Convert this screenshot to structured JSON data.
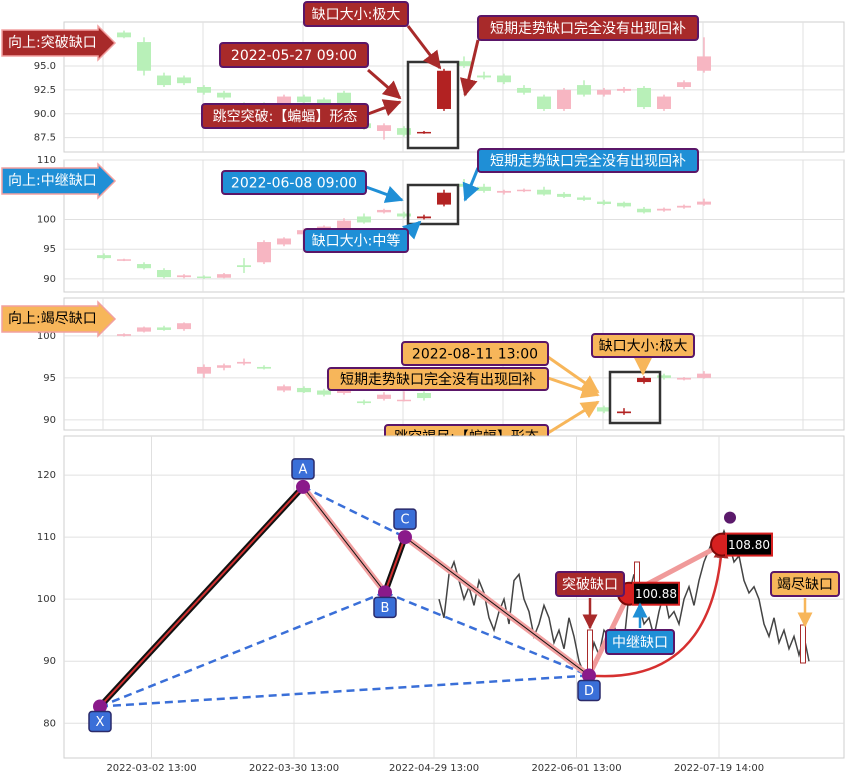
{
  "chart_data": [
    {
      "type": "candlestick",
      "banner": "向上:突破缺口",
      "theme_color": "#a82a2a",
      "text_color": "#ffffff",
      "border_color": "#5a1668",
      "up_color": "#f7b6c2",
      "down_color": "#b8f0b8",
      "highlight_color": "#b22222",
      "highlight_x": [
        18,
        19
      ],
      "xlim": [
        0,
        39
      ],
      "ylim": [
        86,
        99.6
      ],
      "yticks": [
        87.5,
        {
          "value": 90,
          "label": "90.0"
        },
        92.5,
        {
          "value": 95,
          "label": "95.0"
        }
      ],
      "x": [
        3,
        4,
        5,
        6,
        7,
        8,
        9,
        10,
        11,
        12,
        13,
        14,
        15,
        16,
        17,
        18,
        19,
        20,
        21,
        22,
        23,
        24,
        25,
        26,
        27,
        28,
        29,
        30,
        31,
        32
      ],
      "open": [
        98.5,
        97.5,
        94,
        93.8,
        92.8,
        92.2,
        91,
        91,
        91,
        91.8,
        91.5,
        92.2,
        89,
        88.2,
        88.5,
        88,
        90.5,
        95.5,
        94,
        94,
        92.7,
        91.8,
        90.5,
        93,
        92,
        92.4,
        92.7,
        90.5,
        92.8,
        94.5
      ],
      "high": [
        98.7,
        98,
        94.3,
        94,
        93,
        92.4,
        91.2,
        91.2,
        92,
        92,
        91.7,
        92.4,
        89.3,
        89,
        88.7,
        88.2,
        94.7,
        96,
        94.4,
        94.2,
        93,
        92,
        92.7,
        93.5,
        92.7,
        92.8,
        92.9,
        92,
        93.5,
        98
      ],
      "low": [
        97.9,
        94,
        92.8,
        93,
        92,
        91.5,
        90.5,
        90.1,
        90.8,
        91,
        90.3,
        90.8,
        88.3,
        87.3,
        87.6,
        87.9,
        90.3,
        94.8,
        93.6,
        93.1,
        92,
        90.3,
        90.3,
        91.8,
        91.8,
        92.2,
        90.5,
        90.3,
        92.6,
        94.3
      ],
      "close": [
        98,
        94.5,
        93,
        93.2,
        92.2,
        91.7,
        90.7,
        90.3,
        91.8,
        91.2,
        90.5,
        91,
        88.5,
        88.8,
        87.8,
        88.1,
        94.5,
        95,
        93.8,
        93.3,
        92.2,
        90.5,
        92.5,
        92,
        92.5,
        92.6,
        90.7,
        91.8,
        93.3,
        96
      ],
      "annotations": [
        {
          "text": "缺口大小:极大"
        },
        {
          "text": "2022-05-27 09:00"
        },
        {
          "text": "短期走势缺口完全没有出现回补"
        },
        {
          "text": "跳空突破:【蝙蝠】形态"
        }
      ]
    },
    {
      "type": "candlestick",
      "banner": "向上:中继缺口",
      "theme_color": "#1f8fd6",
      "text_color": "#ffffff",
      "border_color": "#5a1668",
      "up_color": "#f7b6c2",
      "down_color": "#b8f0b8",
      "highlight_color": "#b22222",
      "highlight_x": [
        18,
        19
      ],
      "xlim": [
        0,
        39
      ],
      "ylim": [
        87.8,
        110
      ],
      "yticks": [
        90,
        95,
        100,
        110
      ],
      "x": [
        2,
        3,
        4,
        5,
        6,
        7,
        8,
        9,
        10,
        11,
        12,
        13,
        14,
        15,
        16,
        17,
        18,
        19,
        20,
        21,
        22,
        23,
        24,
        25,
        26,
        27,
        28,
        29,
        30,
        31,
        32
      ],
      "open": [
        94,
        93.1,
        92.5,
        91.5,
        90.3,
        90.4,
        90.2,
        92.3,
        92.8,
        95.8,
        97.5,
        98.2,
        98,
        100.5,
        101.2,
        101,
        100.2,
        102.5,
        106,
        105.5,
        104.5,
        104.8,
        105,
        104.3,
        103.7,
        103,
        102.8,
        101.8,
        101.5,
        102,
        102.5
      ],
      "high": [
        94.3,
        93.4,
        92.8,
        91.8,
        90.8,
        90.6,
        91,
        93.5,
        96.5,
        97,
        98.5,
        99,
        100.2,
        101,
        101.8,
        101.3,
        100.8,
        105,
        106.8,
        106,
        105,
        105.2,
        105.5,
        104.6,
        104,
        103.3,
        103,
        102.1,
        102,
        102.5,
        103.5
      ],
      "low": [
        93.3,
        93,
        91.6,
        90.1,
        90.1,
        90,
        90.1,
        91,
        92.5,
        95.5,
        97.2,
        98,
        97.8,
        99.3,
        101,
        100.2,
        100,
        102.2,
        105.3,
        104.5,
        104.2,
        104.6,
        104,
        103.6,
        103.1,
        102.4,
        102,
        101,
        101.3,
        101.8,
        102.3
      ],
      "close": [
        93.5,
        93.3,
        91.8,
        90.3,
        90.6,
        90.2,
        90.8,
        92,
        96.2,
        96.8,
        98.2,
        98.8,
        99.8,
        99.5,
        101.6,
        100.5,
        100.5,
        104.5,
        105.5,
        104.8,
        104.8,
        105,
        104.2,
        103.8,
        103.3,
        102.6,
        102.2,
        101.2,
        101.8,
        102.3,
        103
      ],
      "annotations": [
        {
          "text": "2022-06-08 09:00"
        },
        {
          "text": "短期走势缺口完全没有出现回补"
        },
        {
          "text": "缺口大小:中等"
        }
      ]
    },
    {
      "type": "candlestick",
      "banner": "向上:竭尽缺口",
      "theme_color": "#f7b65a",
      "text_color": "#000000",
      "border_color": "#5a1668",
      "up_color": "#f7b6c2",
      "down_color": "#b8f0b8",
      "highlight_color": "#b22222",
      "highlight_x": [
        28,
        29
      ],
      "xlim": [
        0,
        39
      ],
      "ylim": [
        88.8,
        104.5
      ],
      "yticks": [
        90,
        95,
        100
      ],
      "x": [
        3,
        4,
        5,
        6,
        7,
        8,
        9,
        10,
        11,
        12,
        13,
        14,
        15,
        16,
        17,
        18,
        27,
        28,
        29,
        30,
        31,
        32
      ],
      "open": [
        100,
        100.5,
        101,
        100.8,
        95.5,
        96.2,
        96.7,
        96.3,
        93.5,
        93.8,
        93.5,
        93.2,
        92.2,
        92.5,
        92.4,
        93.2,
        91.5,
        90.8,
        94.5,
        95.3,
        94.8,
        95
      ],
      "high": [
        100.3,
        101.1,
        101.2,
        101.6,
        96.6,
        96.7,
        97.3,
        96.5,
        94.2,
        94,
        93.7,
        93.7,
        92.4,
        93.3,
        93.4,
        93.4,
        91.7,
        91.4,
        95.2,
        95.5,
        95.1,
        95.8
      ],
      "low": [
        99.9,
        100.4,
        100.6,
        100.6,
        95,
        95.9,
        96.5,
        96,
        93.3,
        93.2,
        92.8,
        93,
        91.8,
        92.3,
        92.2,
        92.3,
        90.8,
        90.6,
        94.3,
        94.8,
        94.7,
        94.9
      ],
      "close": [
        100.2,
        101,
        100.7,
        101.5,
        96.3,
        96.5,
        96.9,
        96.1,
        94,
        93.3,
        93,
        93.5,
        92,
        93,
        92.4,
        92.6,
        91,
        91,
        95,
        95,
        95,
        95.5
      ],
      "annotations": [
        {
          "text": "2022-08-11 13:00"
        },
        {
          "text": "缺口大小:极大"
        },
        {
          "text": "短期走势缺口完全没有出现回补"
        },
        {
          "text": "跳空竭尽:【蝙蝠】形态"
        }
      ]
    },
    {
      "type": "line",
      "color": "#444444",
      "xlim": [
        0,
        156
      ],
      "ylim": [
        74.4,
        126.3
      ],
      "yticks": [
        80,
        90,
        100,
        110,
        120
      ],
      "xticks": [
        {
          "value": 17.5,
          "label": "2022-03-02 13:00"
        },
        {
          "value": 46,
          "label": "2022-03-30 13:00"
        },
        {
          "value": 74,
          "label": "2022-04-29 13:00"
        },
        {
          "value": 102.5,
          "label": "2022-06-01 13:00"
        },
        {
          "value": 131,
          "label": "2022-07-19 14:00"
        }
      ],
      "x": [
        75,
        76,
        77,
        78,
        79,
        80,
        81,
        82,
        83,
        84,
        85,
        86,
        87,
        88,
        89,
        90,
        91,
        92,
        93,
        94,
        95,
        96,
        97,
        98,
        99,
        100,
        101,
        102,
        103,
        104,
        105,
        106,
        107,
        108,
        109,
        110,
        111,
        112,
        113,
        114,
        115,
        116,
        117,
        118,
        119,
        120,
        121,
        122,
        123,
        124,
        125,
        126,
        127,
        128,
        129,
        130,
        131,
        132,
        133,
        134,
        135,
        136,
        137,
        138,
        139,
        140,
        141,
        142,
        143,
        144,
        145,
        146,
        147,
        148,
        149
      ],
      "values": [
        100,
        97,
        104,
        106,
        103,
        100,
        102,
        99,
        103,
        101,
        97,
        95,
        98,
        100,
        96,
        103,
        104,
        100,
        98,
        94,
        96,
        99,
        97,
        93,
        95,
        92,
        97,
        94,
        90,
        88,
        89,
        93,
        91,
        95,
        94,
        96,
        92,
        93,
        100.88,
        104,
        99,
        96,
        97,
        94,
        98,
        101,
        97,
        98,
        96,
        100,
        102,
        99,
        103,
        106,
        108,
        110,
        108.8,
        111,
        109,
        106,
        107,
        103,
        101,
        102,
        100,
        96,
        94,
        97,
        93,
        95,
        92,
        94,
        91,
        94,
        90
      ],
      "pattern": [
        {
          "label": "X",
          "x": 7.2,
          "y": 82.7
        },
        {
          "label": "A",
          "x": 47.8,
          "y": 118.1
        },
        {
          "label": "B",
          "x": 64.2,
          "y": 101.1
        },
        {
          "label": "C",
          "x": 68.2,
          "y": 110
        },
        {
          "label": "D",
          "x": 105,
          "y": 87.7
        }
      ],
      "callouts": [
        {
          "x": 113,
          "value": 100.88
        },
        {
          "x": 131.6,
          "value": 108.8,
          "label": "108.80"
        }
      ],
      "gap_labels": [
        {
          "text": "突破缺口"
        },
        {
          "text": "中继缺口"
        },
        {
          "text": "竭尽缺口"
        }
      ]
    }
  ]
}
